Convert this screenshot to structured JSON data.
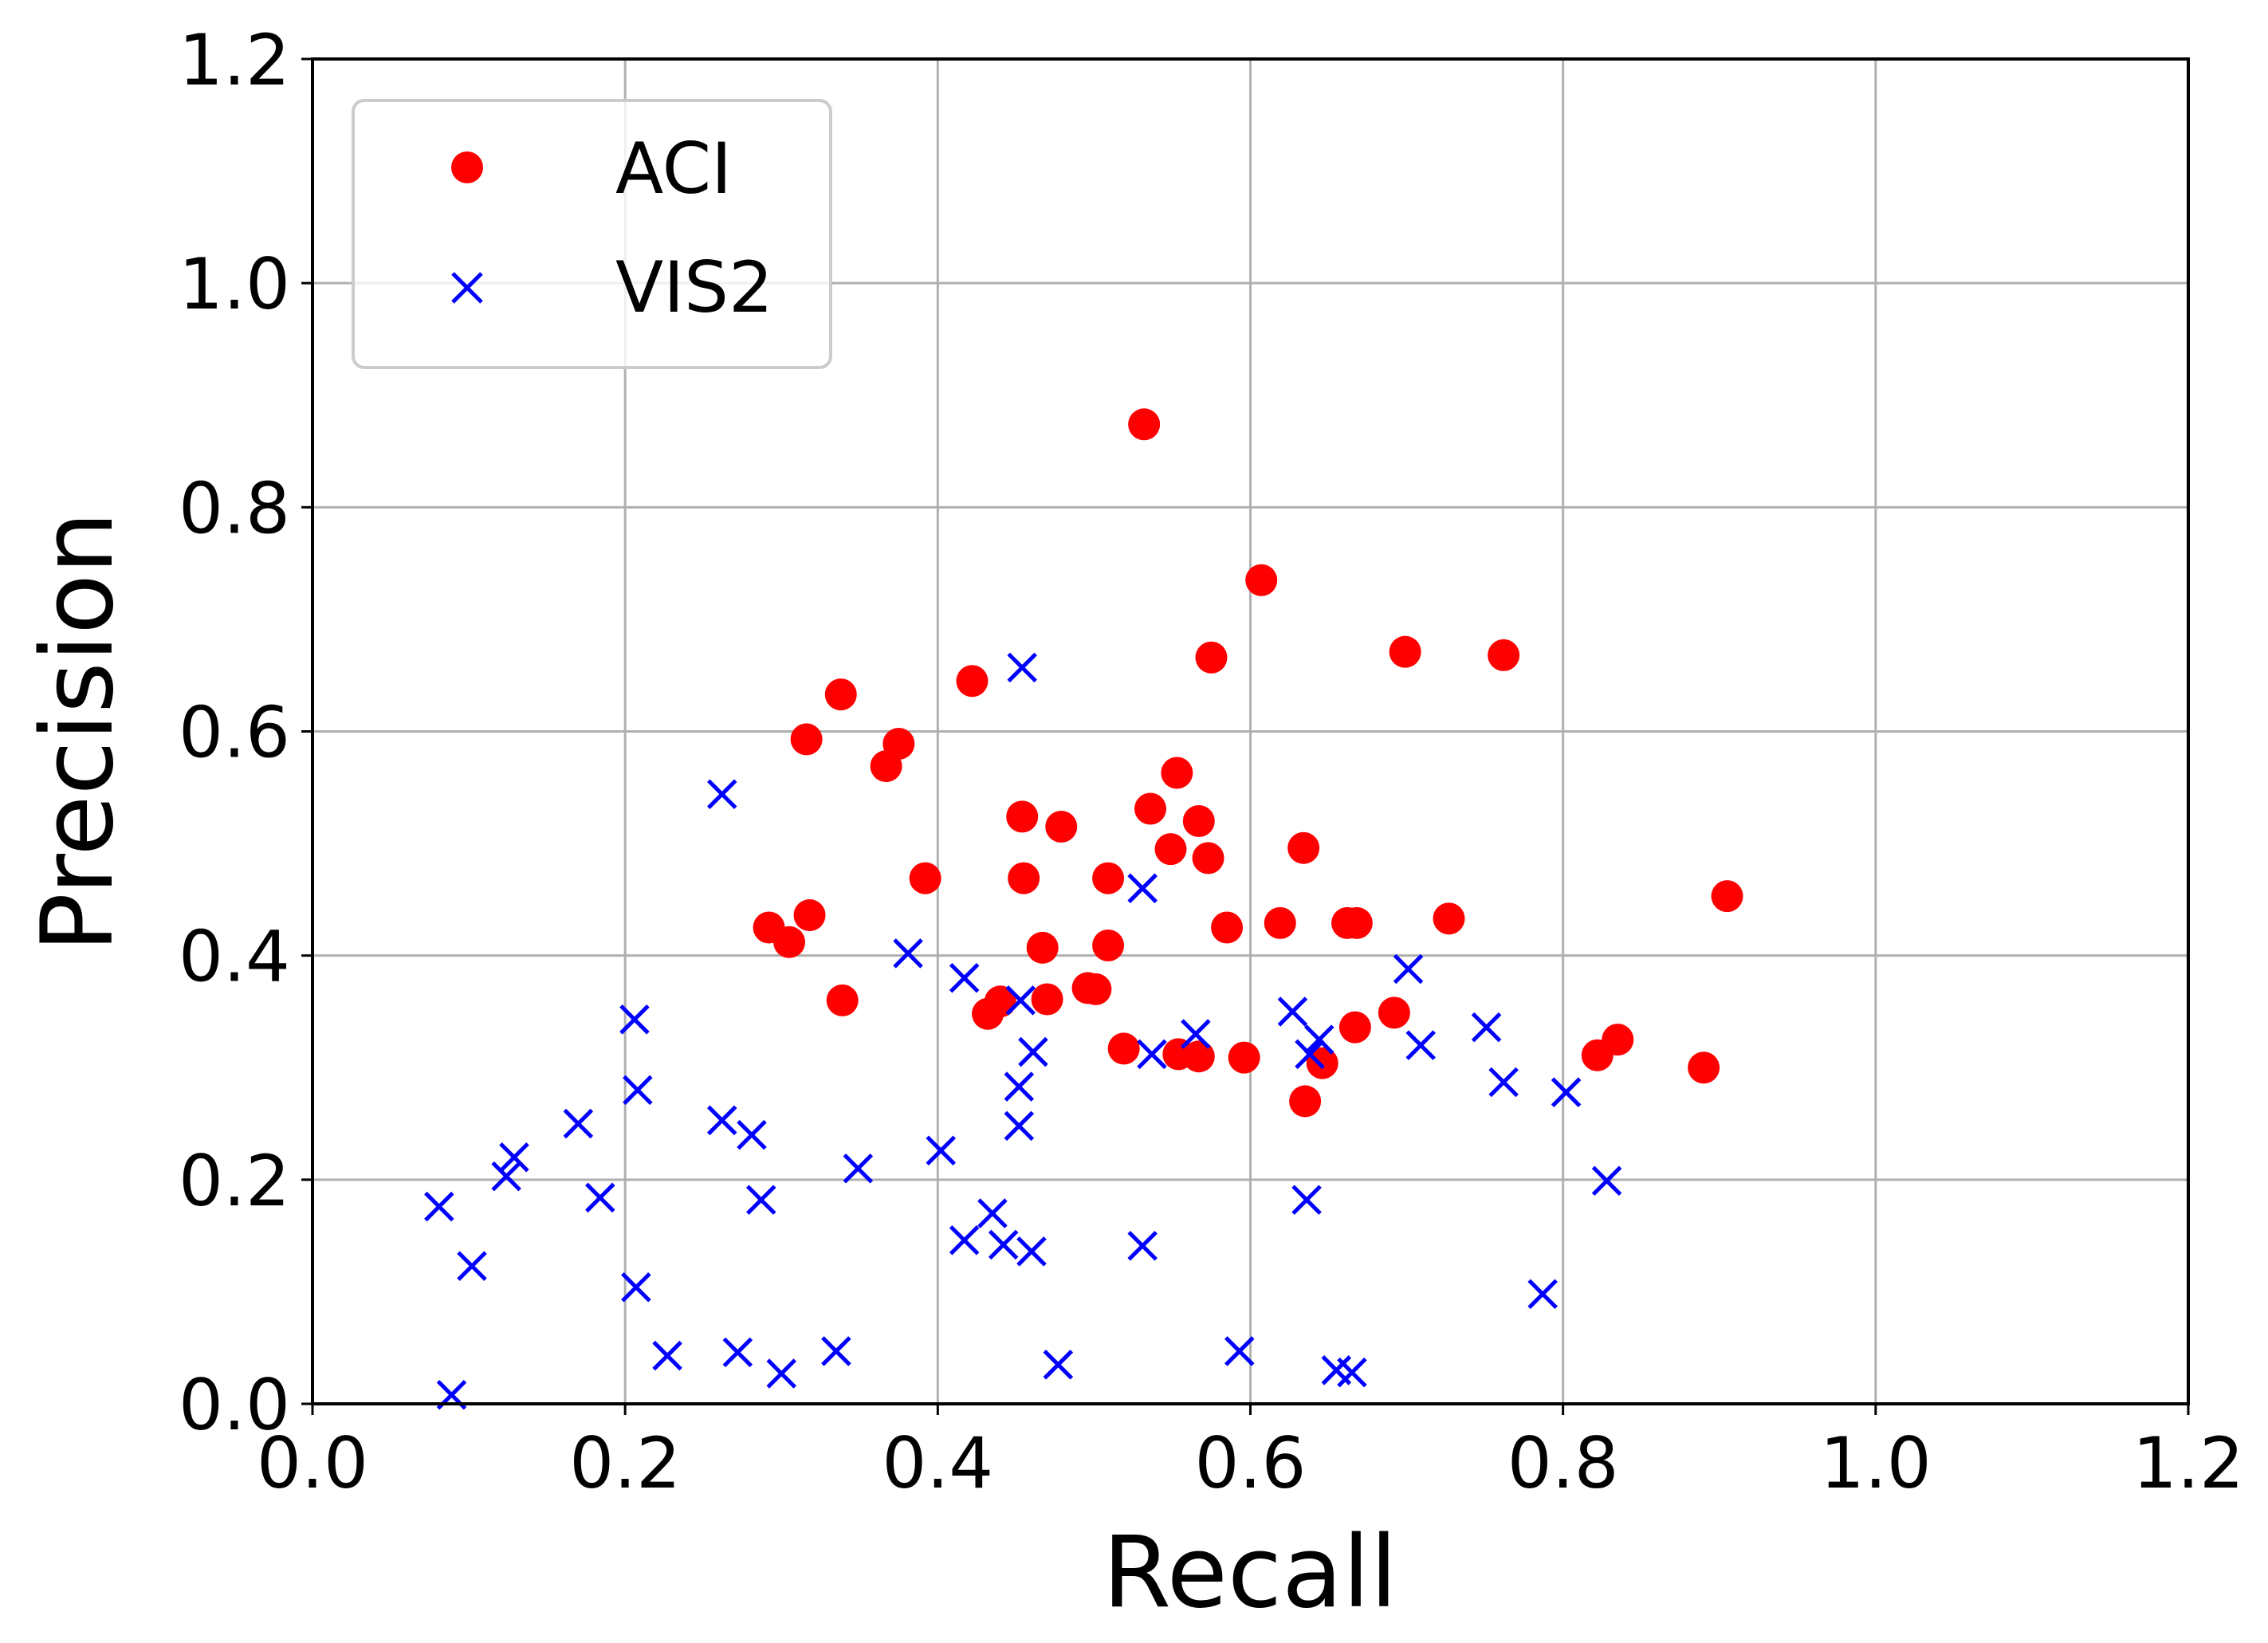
{
  "chart_data": {
    "type": "scatter",
    "title": "",
    "xlabel": "Recall",
    "ylabel": "Precision",
    "xlim": [
      0.0,
      1.2
    ],
    "ylim": [
      0.0,
      1.2
    ],
    "xticks": [
      "0.0",
      "0.2",
      "0.4",
      "0.6",
      "0.8",
      "1.0",
      "1.2"
    ],
    "yticks": [
      "0.0",
      "0.2",
      "0.4",
      "0.6",
      "0.8",
      "1.0",
      "1.2"
    ],
    "grid": true,
    "legend_position": "top-left",
    "series": [
      {
        "name": "ACI",
        "marker": "circle",
        "color": "#ff0000",
        "points": [
          [
            0.532,
            0.874
          ],
          [
            0.607,
            0.735
          ],
          [
            0.699,
            0.671
          ],
          [
            0.762,
            0.668
          ],
          [
            0.575,
            0.666
          ],
          [
            0.422,
            0.645
          ],
          [
            0.338,
            0.633
          ],
          [
            0.316,
            0.593
          ],
          [
            0.375,
            0.589
          ],
          [
            0.367,
            0.569
          ],
          [
            0.553,
            0.563
          ],
          [
            0.536,
            0.531
          ],
          [
            0.454,
            0.524
          ],
          [
            0.479,
            0.515
          ],
          [
            0.567,
            0.52
          ],
          [
            0.549,
            0.495
          ],
          [
            0.573,
            0.487
          ],
          [
            0.634,
            0.496
          ],
          [
            0.392,
            0.469
          ],
          [
            0.455,
            0.469
          ],
          [
            0.509,
            0.469
          ],
          [
            0.905,
            0.453
          ],
          [
            0.318,
            0.436
          ],
          [
            0.292,
            0.425
          ],
          [
            0.305,
            0.412
          ],
          [
            0.585,
            0.425
          ],
          [
            0.619,
            0.429
          ],
          [
            0.662,
            0.429
          ],
          [
            0.668,
            0.429
          ],
          [
            0.727,
            0.433
          ],
          [
            0.467,
            0.407
          ],
          [
            0.509,
            0.409
          ],
          [
            0.339,
            0.36
          ],
          [
            0.496,
            0.371
          ],
          [
            0.501,
            0.37
          ],
          [
            0.47,
            0.361
          ],
          [
            0.44,
            0.359
          ],
          [
            0.432,
            0.348
          ],
          [
            0.692,
            0.349
          ],
          [
            0.667,
            0.336
          ],
          [
            0.519,
            0.317
          ],
          [
            0.554,
            0.312
          ],
          [
            0.567,
            0.31
          ],
          [
            0.596,
            0.309
          ],
          [
            0.646,
            0.304
          ],
          [
            0.822,
            0.311
          ],
          [
            0.835,
            0.325
          ],
          [
            0.89,
            0.3
          ],
          [
            0.635,
            0.27
          ]
        ]
      },
      {
        "name": "VIS2",
        "marker": "x",
        "color": "#0000ff",
        "points": [
          [
            0.454,
            0.657
          ],
          [
            0.262,
            0.544
          ],
          [
            0.531,
            0.46
          ],
          [
            0.381,
            0.402
          ],
          [
            0.417,
            0.38
          ],
          [
            0.701,
            0.388
          ],
          [
            0.206,
            0.343
          ],
          [
            0.453,
            0.36
          ],
          [
            0.627,
            0.35
          ],
          [
            0.565,
            0.33
          ],
          [
            0.644,
            0.325
          ],
          [
            0.751,
            0.336
          ],
          [
            0.461,
            0.314
          ],
          [
            0.537,
            0.312
          ],
          [
            0.638,
            0.312
          ],
          [
            0.709,
            0.32
          ],
          [
            0.208,
            0.28
          ],
          [
            0.452,
            0.283
          ],
          [
            0.762,
            0.287
          ],
          [
            0.802,
            0.278
          ],
          [
            0.17,
            0.25
          ],
          [
            0.262,
            0.253
          ],
          [
            0.281,
            0.24
          ],
          [
            0.452,
            0.248
          ],
          [
            0.129,
            0.22
          ],
          [
            0.124,
            0.203
          ],
          [
            0.349,
            0.21
          ],
          [
            0.402,
            0.226
          ],
          [
            0.081,
            0.176
          ],
          [
            0.184,
            0.184
          ],
          [
            0.287,
            0.182
          ],
          [
            0.636,
            0.182
          ],
          [
            0.828,
            0.199
          ],
          [
            0.435,
            0.17
          ],
          [
            0.417,
            0.146
          ],
          [
            0.442,
            0.142
          ],
          [
            0.46,
            0.136
          ],
          [
            0.531,
            0.141
          ],
          [
            0.102,
            0.123
          ],
          [
            0.207,
            0.104
          ],
          [
            0.787,
            0.098
          ],
          [
            0.227,
            0.043
          ],
          [
            0.272,
            0.046
          ],
          [
            0.3,
            0.027
          ],
          [
            0.335,
            0.047
          ],
          [
            0.477,
            0.035
          ],
          [
            0.593,
            0.047
          ],
          [
            0.655,
            0.03
          ],
          [
            0.665,
            0.028
          ],
          [
            0.089,
            0.008
          ]
        ]
      }
    ]
  }
}
